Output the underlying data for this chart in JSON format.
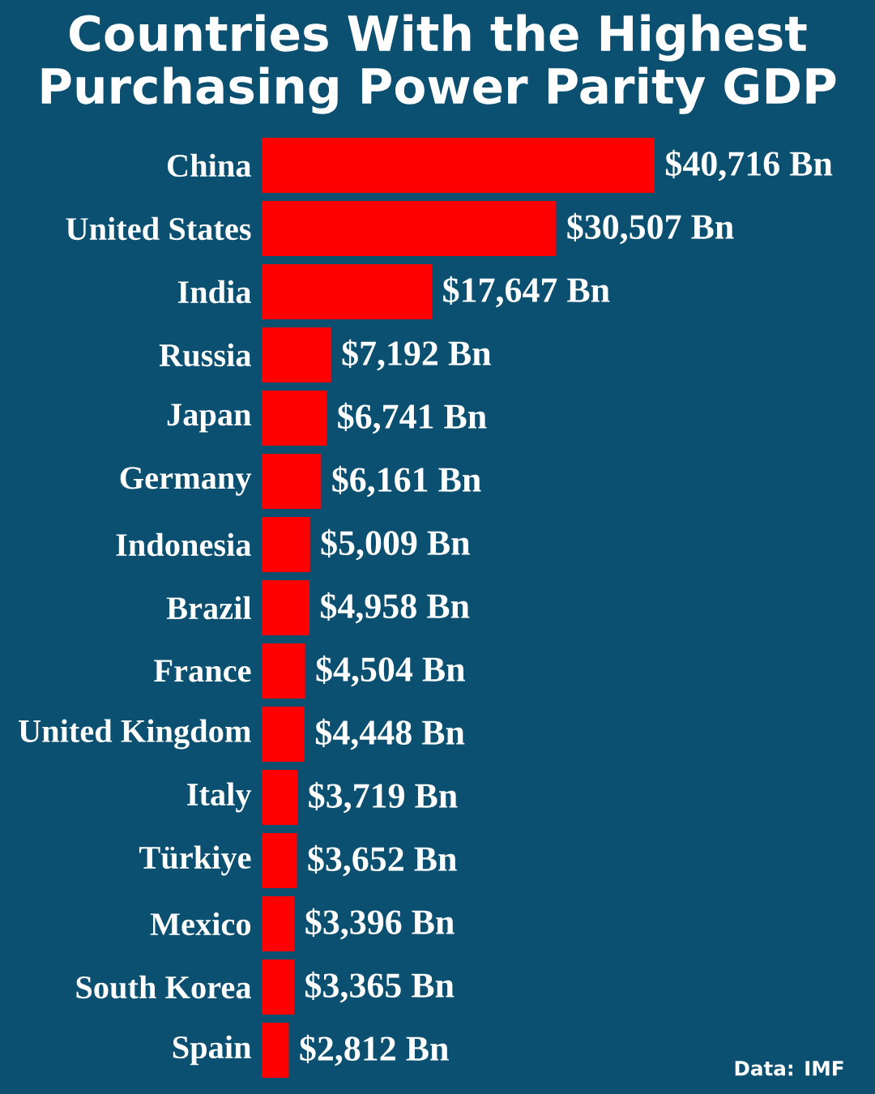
{
  "chart_data": {
    "type": "bar",
    "orientation": "horizontal",
    "title": "Countries With the Highest Purchasing Power Parity GDP",
    "categories": [
      "China",
      "United States",
      "India",
      "Russia",
      "Japan",
      "Germany",
      "Indonesia",
      "Brazil",
      "France",
      "United Kingdom",
      "Italy",
      "Türkiye",
      "Mexico",
      "South Korea",
      "Spain"
    ],
    "values": [
      40716,
      30507,
      17647,
      7192,
      6741,
      6161,
      5009,
      4958,
      4504,
      4448,
      3719,
      3652,
      3396,
      3365,
      2812
    ],
    "value_labels": [
      "$40,716 Bn",
      "$30,507 Bn",
      "$17,647 Bn",
      "$7,192 Bn",
      "$6,741 Bn",
      "$6,161 Bn",
      "$5,009 Bn",
      "$4,958 Bn",
      "$4,504 Bn",
      "$4,448 Bn",
      "$3,719 Bn",
      "$3,652 Bn",
      "$3,396 Bn",
      "$3,365 Bn",
      "$2,812 Bn"
    ],
    "color": "#ff0000",
    "annotations": [
      "Data: IMF"
    ]
  }
}
